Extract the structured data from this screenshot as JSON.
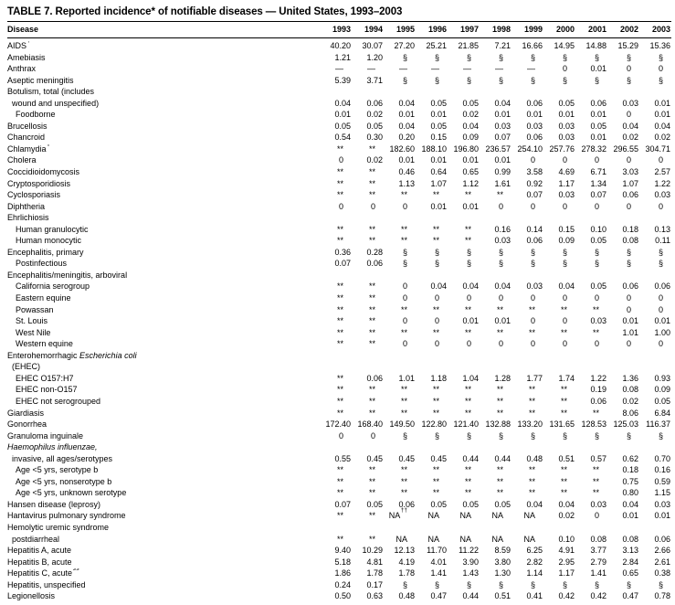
{
  "title": "TABLE 7. Reported incidence* of notifiable diseases — United States, 1993–2003",
  "table": {
    "columns": [
      "Disease",
      "1993",
      "1994",
      "1995",
      "1996",
      "1997",
      "1998",
      "1999",
      "2000",
      "2001",
      "2002",
      "2003"
    ],
    "rows": [
      {
        "label": "AIDS",
        "label_sup": "†",
        "indent": 0,
        "values": [
          "40.20",
          "30.07",
          "27.20",
          "25.21",
          "21.85",
          "7.21",
          "16.66",
          "14.95",
          "14.88",
          "15.29",
          "15.36"
        ]
      },
      {
        "label": "Amebiasis",
        "indent": 0,
        "values": [
          "1.21",
          "1.20",
          "§",
          "§",
          "§",
          "§",
          "§",
          "§",
          "§",
          "§",
          "§"
        ]
      },
      {
        "label": "Anthrax",
        "indent": 0,
        "values": [
          "—",
          "—",
          "—",
          "—",
          "—",
          "—",
          "—",
          "0",
          "0.01",
          "0",
          "0"
        ]
      },
      {
        "label": "Aseptic meningitis",
        "indent": 0,
        "values": [
          "5.39",
          "3.71",
          "§",
          "§",
          "§",
          "§",
          "§",
          "§",
          "§",
          "§",
          "§"
        ]
      },
      {
        "label": "Botulism, total (includes",
        "indent": 0,
        "values": null
      },
      {
        "label": "wound and unspecified)",
        "indent": 1,
        "values": [
          "0.04",
          "0.06",
          "0.04",
          "0.05",
          "0.05",
          "0.04",
          "0.06",
          "0.05",
          "0.06",
          "0.03",
          "0.01"
        ]
      },
      {
        "label": "Foodborne",
        "indent": 2,
        "values": [
          "0.01",
          "0.02",
          "0.01",
          "0.01",
          "0.02",
          "0.01",
          "0.01",
          "0.01",
          "0.01",
          "0",
          "0.01"
        ]
      },
      {
        "label": "Brucellosis",
        "indent": 0,
        "values": [
          "0.05",
          "0.05",
          "0.04",
          "0.05",
          "0.04",
          "0.03",
          "0.03",
          "0.03",
          "0.05",
          "0.04",
          "0.04"
        ]
      },
      {
        "label": "Chancroid",
        "indent": 0,
        "values": [
          "0.54",
          "0.30",
          "0.20",
          "0.15",
          "0.09",
          "0.07",
          "0.06",
          "0.03",
          "0.01",
          "0.02",
          "0.02"
        ]
      },
      {
        "label": "Chlamydia",
        "label_sup": "¶",
        "indent": 0,
        "values": [
          "**",
          "**",
          "182.60",
          "188.10",
          "196.80",
          "236.57",
          "254.10",
          "257.76",
          "278.32",
          "296.55",
          "304.71"
        ]
      },
      {
        "label": "Cholera",
        "indent": 0,
        "values": [
          "0",
          "0.02",
          "0.01",
          "0.01",
          "0.01",
          "0.01",
          "0",
          "0",
          "0",
          "0",
          "0"
        ]
      },
      {
        "label": "Coccidioidomycosis",
        "indent": 0,
        "values": [
          "**",
          "**",
          "0.46",
          "0.64",
          "0.65",
          "0.99",
          "3.58",
          "4.69",
          "6.71",
          "3.03",
          "2.57"
        ]
      },
      {
        "label": "Cryptosporidiosis",
        "indent": 0,
        "values": [
          "**",
          "**",
          "1.13",
          "1.07",
          "1.12",
          "1.61",
          "0.92",
          "1.17",
          "1.34",
          "1.07",
          "1.22"
        ]
      },
      {
        "label": "Cyclosporiasis",
        "indent": 0,
        "values": [
          "**",
          "**",
          "**",
          "**",
          "**",
          "**",
          "0.07",
          "0.03",
          "0.07",
          "0.06",
          "0.03"
        ]
      },
      {
        "label": "Diphtheria",
        "indent": 0,
        "values": [
          "0",
          "0",
          "0",
          "0.01",
          "0.01",
          "0",
          "0",
          "0",
          "0",
          "0",
          "0"
        ]
      },
      {
        "label": "Ehrlichiosis",
        "indent": 0,
        "values": null
      },
      {
        "label": "Human granulocytic",
        "indent": 2,
        "values": [
          "**",
          "**",
          "**",
          "**",
          "**",
          "0.16",
          "0.14",
          "0.15",
          "0.10",
          "0.18",
          "0.13"
        ]
      },
      {
        "label": "Human monocytic",
        "indent": 2,
        "values": [
          "**",
          "**",
          "**",
          "**",
          "**",
          "0.03",
          "0.06",
          "0.09",
          "0.05",
          "0.08",
          "0.11"
        ]
      },
      {
        "label": "Encephalitis, primary",
        "indent": 0,
        "values": [
          "0.36",
          "0.28",
          "§",
          "§",
          "§",
          "§",
          "§",
          "§",
          "§",
          "§",
          "§"
        ]
      },
      {
        "label": "Postinfectious",
        "indent": 2,
        "values": [
          "0.07",
          "0.06",
          "§",
          "§",
          "§",
          "§",
          "§",
          "§",
          "§",
          "§",
          "§"
        ]
      },
      {
        "label": "Encephalitis/meningitis, arboviral",
        "indent": 0,
        "values": null
      },
      {
        "label": "California serogroup",
        "indent": 2,
        "values": [
          "**",
          "**",
          "0",
          "0.04",
          "0.04",
          "0.04",
          "0.03",
          "0.04",
          "0.05",
          "0.06",
          "0.06"
        ]
      },
      {
        "label": "Eastern equine",
        "indent": 2,
        "values": [
          "**",
          "**",
          "0",
          "0",
          "0",
          "0",
          "0",
          "0",
          "0",
          "0",
          "0"
        ]
      },
      {
        "label": "Powassan",
        "indent": 2,
        "values": [
          "**",
          "**",
          "**",
          "**",
          "**",
          "**",
          "**",
          "**",
          "**",
          "0",
          "0"
        ]
      },
      {
        "label": "St. Louis",
        "indent": 2,
        "values": [
          "**",
          "**",
          "0",
          "0",
          "0.01",
          "0.01",
          "0",
          "0",
          "0.03",
          "0.01",
          "0.01"
        ]
      },
      {
        "label": "West Nile",
        "indent": 2,
        "values": [
          "**",
          "**",
          "**",
          "**",
          "**",
          "**",
          "**",
          "**",
          "**",
          "1.01",
          "1.00"
        ]
      },
      {
        "label": "Western equine",
        "indent": 2,
        "values": [
          "**",
          "**",
          "0",
          "0",
          "0",
          "0",
          "0",
          "0",
          "0",
          "0",
          "0"
        ]
      },
      {
        "label": "Enterohemorrhagic",
        "label_italic": "Escherichia coli",
        "indent": 0,
        "values": null
      },
      {
        "label": "(EHEC)",
        "indent": 1,
        "values": null
      },
      {
        "label": "EHEC O157:H7",
        "indent": 2,
        "values": [
          "**",
          "0.06",
          "1.01",
          "1.18",
          "1.04",
          "1.28",
          "1.77",
          "1.74",
          "1.22",
          "1.36",
          "0.93"
        ]
      },
      {
        "label": "EHEC non-O157",
        "indent": 2,
        "values": [
          "**",
          "**",
          "**",
          "**",
          "**",
          "**",
          "**",
          "**",
          "0.19",
          "0.08",
          "0.09"
        ]
      },
      {
        "label": "EHEC not serogrouped",
        "indent": 2,
        "values": [
          "**",
          "**",
          "**",
          "**",
          "**",
          "**",
          "**",
          "**",
          "0.06",
          "0.02",
          "0.05"
        ]
      },
      {
        "label": "Giardiasis",
        "indent": 0,
        "values": [
          "**",
          "**",
          "**",
          "**",
          "**",
          "**",
          "**",
          "**",
          "**",
          "8.06",
          "6.84"
        ]
      },
      {
        "label": "Gonorrhea",
        "indent": 0,
        "values": [
          "172.40",
          "168.40",
          "149.50",
          "122.80",
          "121.40",
          "132.88",
          "133.20",
          "131.65",
          "128.53",
          "125.03",
          "116.37"
        ]
      },
      {
        "label": "Granuloma inguinale",
        "indent": 0,
        "values": [
          "0",
          "0",
          "§",
          "§",
          "§",
          "§",
          "§",
          "§",
          "§",
          "§",
          "§"
        ]
      },
      {
        "label": "",
        "label_italic": "Haemophilus influenzae,",
        "indent": 0,
        "values": null
      },
      {
        "label": "invasive, all ages/serotypes",
        "indent": 1,
        "values": [
          "0.55",
          "0.45",
          "0.45",
          "0.45",
          "0.44",
          "0.44",
          "0.48",
          "0.51",
          "0.57",
          "0.62",
          "0.70"
        ]
      },
      {
        "label": "Age <5 yrs, serotype b",
        "indent": 2,
        "values": [
          "**",
          "**",
          "**",
          "**",
          "**",
          "**",
          "**",
          "**",
          "**",
          "0.18",
          "0.16"
        ]
      },
      {
        "label": "Age <5 yrs, nonserotype b",
        "indent": 2,
        "values": [
          "**",
          "**",
          "**",
          "**",
          "**",
          "**",
          "**",
          "**",
          "**",
          "0.75",
          "0.59"
        ]
      },
      {
        "label": "Age <5 yrs, unknown serotype",
        "indent": 2,
        "values": [
          "**",
          "**",
          "**",
          "**",
          "**",
          "**",
          "**",
          "**",
          "**",
          "0.80",
          "1.15"
        ]
      },
      {
        "label": "Hansen disease (leprosy)",
        "indent": 0,
        "values": [
          "0.07",
          "0.05",
          "0.06",
          "0.05",
          "0.05",
          "0.05",
          "0.04",
          "0.04",
          "0.03",
          "0.04",
          "0.03"
        ]
      },
      {
        "label": "Hantavirus pulmonary syndrome",
        "indent": 0,
        "values": [
          "**",
          "**",
          "NA††",
          "NA",
          "NA",
          "NA",
          "NA",
          "0.02",
          "0",
          "0.01",
          "0.01"
        ]
      },
      {
        "label": "Hemolytic uremic syndrome",
        "indent": 0,
        "values": null
      },
      {
        "label": "postdiarrheal",
        "indent": 1,
        "values": [
          "**",
          "**",
          "NA",
          "NA",
          "NA",
          "NA",
          "NA",
          "0.10",
          "0.08",
          "0.08",
          "0.06"
        ]
      },
      {
        "label": "Hepatitis A, acute",
        "indent": 0,
        "values": [
          "9.40",
          "10.29",
          "12.13",
          "11.70",
          "11.22",
          "8.59",
          "6.25",
          "4.91",
          "3.77",
          "3.13",
          "2.66"
        ]
      },
      {
        "label": "Hepatitis B, acute",
        "indent": 0,
        "values": [
          "5.18",
          "4.81",
          "4.19",
          "4.01",
          "3.90",
          "3.80",
          "2.82",
          "2.95",
          "2.79",
          "2.84",
          "2.61"
        ]
      },
      {
        "label": "Hepatitis C, acute",
        "label_sup": "§§",
        "indent": 0,
        "values": [
          "1.86",
          "1.78",
          "1.78",
          "1.41",
          "1.43",
          "1.30",
          "1.14",
          "1.17",
          "1.41",
          "0.65",
          "0.38"
        ]
      },
      {
        "label": "Hepatitis, unspecified",
        "indent": 0,
        "values": [
          "0.24",
          "0.17",
          "§",
          "§",
          "§",
          "§",
          "§",
          "§",
          "§",
          "§",
          "§"
        ]
      },
      {
        "label": "Legionellosis",
        "indent": 0,
        "values": [
          "0.50",
          "0.63",
          "0.48",
          "0.47",
          "0.44",
          "0.51",
          "0.41",
          "0.42",
          "0.42",
          "0.47",
          "0.78"
        ]
      }
    ]
  }
}
